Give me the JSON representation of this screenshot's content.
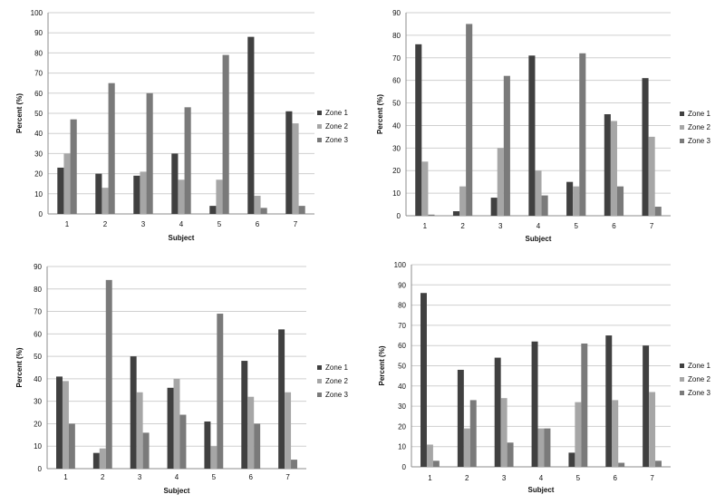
{
  "chart_data": [
    {
      "type": "bar",
      "categories": [
        "1",
        "2",
        "3",
        "4",
        "5",
        "6",
        "7"
      ],
      "xlabel": "Subject",
      "ylabel": "Percent (%)",
      "ylim": [
        0,
        100
      ],
      "yticks": [
        "0",
        "10",
        "20",
        "30",
        "40",
        "50",
        "60",
        "70",
        "80",
        "90",
        "100"
      ],
      "grid": true,
      "legend": "right",
      "colors": [
        "#404040",
        "#a6a6a6",
        "#7a7a7a"
      ],
      "series": [
        {
          "name": "Zone 1",
          "values": [
            23,
            20,
            19,
            30,
            4,
            88,
            51
          ]
        },
        {
          "name": "Zone 2",
          "values": [
            30,
            13,
            21,
            17,
            17,
            9,
            45
          ]
        },
        {
          "name": "Zone 3",
          "values": [
            47,
            65,
            60,
            53,
            79,
            3,
            4
          ]
        }
      ]
    },
    {
      "type": "bar",
      "categories": [
        "1",
        "2",
        "3",
        "4",
        "5",
        "6",
        "7"
      ],
      "xlabel": "Subject",
      "ylabel": "Percent (%)",
      "ylim": [
        0,
        90
      ],
      "yticks": [
        "0",
        "10",
        "20",
        "30",
        "40",
        "50",
        "60",
        "70",
        "80",
        "90"
      ],
      "grid": true,
      "legend": "right",
      "colors": [
        "#404040",
        "#a6a6a6",
        "#7a7a7a"
      ],
      "series": [
        {
          "name": "Zone 1",
          "values": [
            76,
            2,
            8,
            71,
            15,
            45,
            61
          ]
        },
        {
          "name": "Zone 2",
          "values": [
            24,
            13,
            30,
            20,
            13,
            42,
            35
          ]
        },
        {
          "name": "Zone 3",
          "values": [
            0.5,
            85,
            62,
            9,
            72,
            13,
            4
          ]
        }
      ]
    },
    {
      "type": "bar",
      "categories": [
        "1",
        "2",
        "3",
        "4",
        "5",
        "6",
        "7"
      ],
      "xlabel": "Subject",
      "ylabel": "Percent (%)",
      "ylim": [
        0,
        90
      ],
      "yticks": [
        "0",
        "10",
        "20",
        "30",
        "40",
        "50",
        "60",
        "70",
        "80",
        "90"
      ],
      "grid": true,
      "legend": "right",
      "colors": [
        "#404040",
        "#a6a6a6",
        "#7a7a7a"
      ],
      "series": [
        {
          "name": "Zone 1",
          "values": [
            41,
            7,
            50,
            36,
            21,
            48,
            62
          ]
        },
        {
          "name": "Zone 2",
          "values": [
            39,
            9,
            34,
            40,
            10,
            32,
            34
          ]
        },
        {
          "name": "Zone 3",
          "values": [
            20,
            84,
            16,
            24,
            69,
            20,
            4
          ]
        }
      ]
    },
    {
      "type": "bar",
      "categories": [
        "1",
        "2",
        "3",
        "4",
        "5",
        "6",
        "7"
      ],
      "xlabel": "Subject",
      "ylabel": "Percent (%)",
      "ylim": [
        0,
        100
      ],
      "yticks": [
        "0",
        "10",
        "20",
        "30",
        "40",
        "50",
        "60",
        "70",
        "80",
        "90",
        "100"
      ],
      "grid": true,
      "legend": "right",
      "colors": [
        "#404040",
        "#a6a6a6",
        "#7a7a7a"
      ],
      "series": [
        {
          "name": "Zone 1",
          "values": [
            86,
            48,
            54,
            62,
            7,
            65,
            60
          ]
        },
        {
          "name": "Zone 2",
          "values": [
            11,
            19,
            34,
            19,
            32,
            33,
            37
          ]
        },
        {
          "name": "Zone 3",
          "values": [
            3,
            33,
            12,
            19,
            61,
            2,
            3
          ]
        }
      ]
    }
  ]
}
